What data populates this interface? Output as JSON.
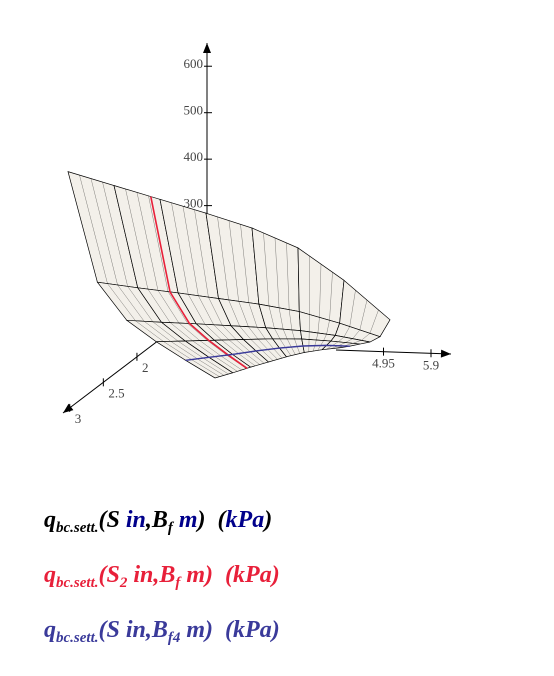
{
  "chart_data": {
    "type": "surface3d",
    "xlim": [
      1.3,
      3.1
    ],
    "xticks": [
      2,
      2.5,
      3
    ],
    "ylim": [
      4.0,
      6.3
    ],
    "yticks": [
      4.95,
      5.9
    ],
    "zlim": [
      0,
      650
    ],
    "zticks": [
      300,
      400,
      500,
      600
    ],
    "axis_color": "#000000",
    "tick_label_color": "#444444",
    "unit_color": "#00008b",
    "series": [
      {
        "name": [
          {
            "text": "q"
          },
          {
            "text": "bc.sett.",
            "sub": true
          },
          {
            "text": "(S "
          },
          {
            "text": "in",
            "unit": true
          },
          {
            "text": ",B"
          },
          {
            "text": "f",
            "sub": true
          },
          {
            "text": " "
          },
          {
            "text": "m",
            "unit": true
          },
          {
            "text": ")  ("
          },
          {
            "text": "kPa",
            "unit": true
          },
          {
            "text": ")"
          }
        ],
        "color": "#000000",
        "fill": "#f3f0ea",
        "x": [
          1,
          1.3,
          1.6,
          1.9,
          2.2,
          2.5
        ],
        "y": [
          2.5,
          3,
          3.5,
          4,
          4.5,
          5,
          5.5,
          6
        ],
        "values": [
          [
            400,
            380,
            360,
            340,
            318,
            285,
            225,
            150
          ],
          [
            199,
            192,
            186,
            179,
            172,
            161,
            141,
            117
          ],
          [
            154,
            150,
            147,
            143,
            139,
            133,
            123,
            109
          ],
          [
            145,
            142,
            139,
            136,
            133,
            128,
            119,
            108
          ],
          [
            142,
            139,
            136,
            134,
            131,
            126,
            118,
            107
          ],
          [
            141,
            138,
            136,
            133,
            130,
            125,
            117,
            107
          ]
        ]
      },
      {
        "name": [
          {
            "text": "q"
          },
          {
            "text": "bc.sett.",
            "sub": true
          },
          {
            "text": "(S"
          },
          {
            "text": "2",
            "sub": true
          },
          {
            "text": " in,B"
          },
          {
            "text": "f",
            "sub": true
          },
          {
            "text": " m)  (kPa)"
          }
        ],
        "color": "#e8203a",
        "y": 3.4,
        "values": [
          364,
          187,
          148,
          140,
          137,
          136
        ]
      },
      {
        "name": [
          {
            "text": "q"
          },
          {
            "text": "bc.sett.",
            "sub": true
          },
          {
            "text": "(S in,B"
          },
          {
            "text": "f4",
            "sub": true
          },
          {
            "text": " m)  (kPa)"
          }
        ],
        "color": "#3a3a9a",
        "x": 2.2,
        "values": [
          142,
          139,
          136,
          134,
          131,
          126,
          118,
          107
        ]
      }
    ]
  }
}
